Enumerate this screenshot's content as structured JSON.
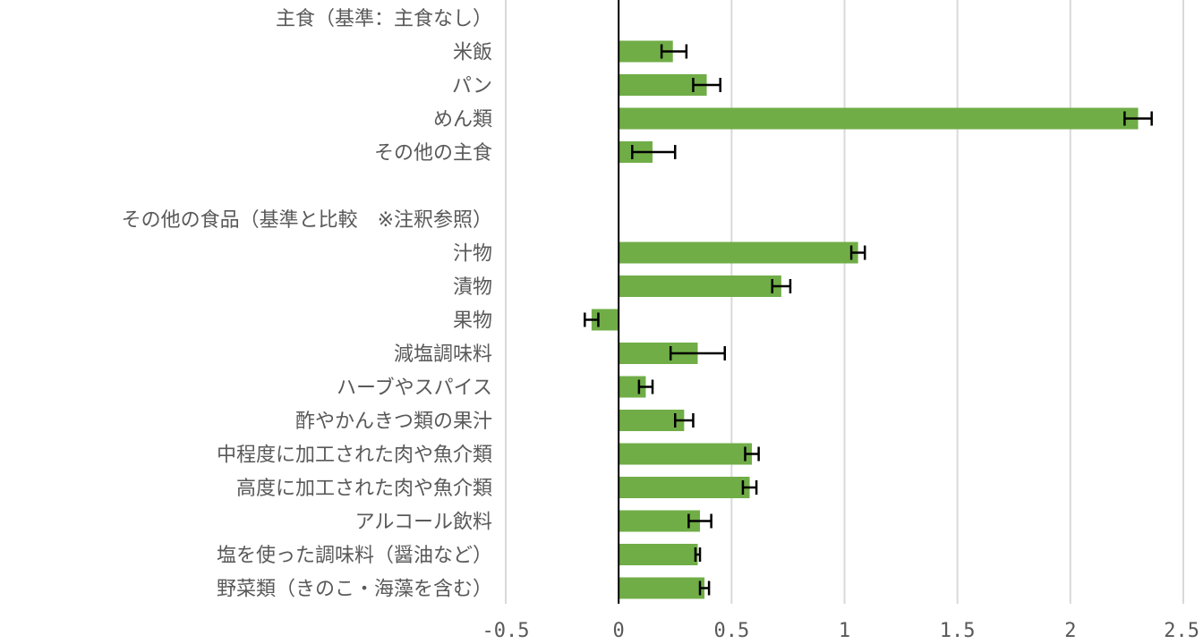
{
  "chart_data": {
    "type": "bar",
    "orientation": "horizontal",
    "grid": true,
    "bar_color": "#70ad47",
    "grid_color": "#d9d9d9",
    "axis_color": "#000000",
    "error_bar_color": "#000000",
    "xlim": [
      -0.5,
      2.5
    ],
    "xticks": [
      -0.5,
      0,
      0.5,
      1,
      1.5,
      2,
      2.5
    ],
    "xtick_labels": [
      "-0.5",
      "0",
      "0.5",
      "1",
      "1.5",
      "2",
      "2.5"
    ],
    "categories": [
      "主食（基準：主食なし）",
      "米飯",
      "パン",
      "めん類",
      "その他の主食",
      "",
      "その他の食品（基準と比較　※注釈参照）",
      "汁物",
      "漬物",
      "果物",
      "減塩調味料",
      "ハーブやスパイス",
      "酢やかんきつ類の果汁",
      "中程度に加工された肉や魚介類",
      "高度に加工された肉や魚介類",
      "アルコール飲料",
      "塩を使った調味料（醤油など）",
      "野菜類（きのこ・海藻を含む）"
    ],
    "values": [
      null,
      0.24,
      0.39,
      2.3,
      0.15,
      null,
      null,
      1.06,
      0.72,
      -0.12,
      0.35,
      0.12,
      0.29,
      0.59,
      0.58,
      0.36,
      0.35,
      0.38
    ],
    "error_low": [
      null,
      0.19,
      0.33,
      2.24,
      0.06,
      null,
      null,
      1.03,
      0.68,
      -0.15,
      0.23,
      0.09,
      0.25,
      0.56,
      0.55,
      0.31,
      0.34,
      0.36
    ],
    "error_high": [
      null,
      0.3,
      0.45,
      2.36,
      0.25,
      null,
      null,
      1.09,
      0.76,
      -0.09,
      0.47,
      0.15,
      0.33,
      0.62,
      0.61,
      0.41,
      0.36,
      0.4
    ]
  }
}
